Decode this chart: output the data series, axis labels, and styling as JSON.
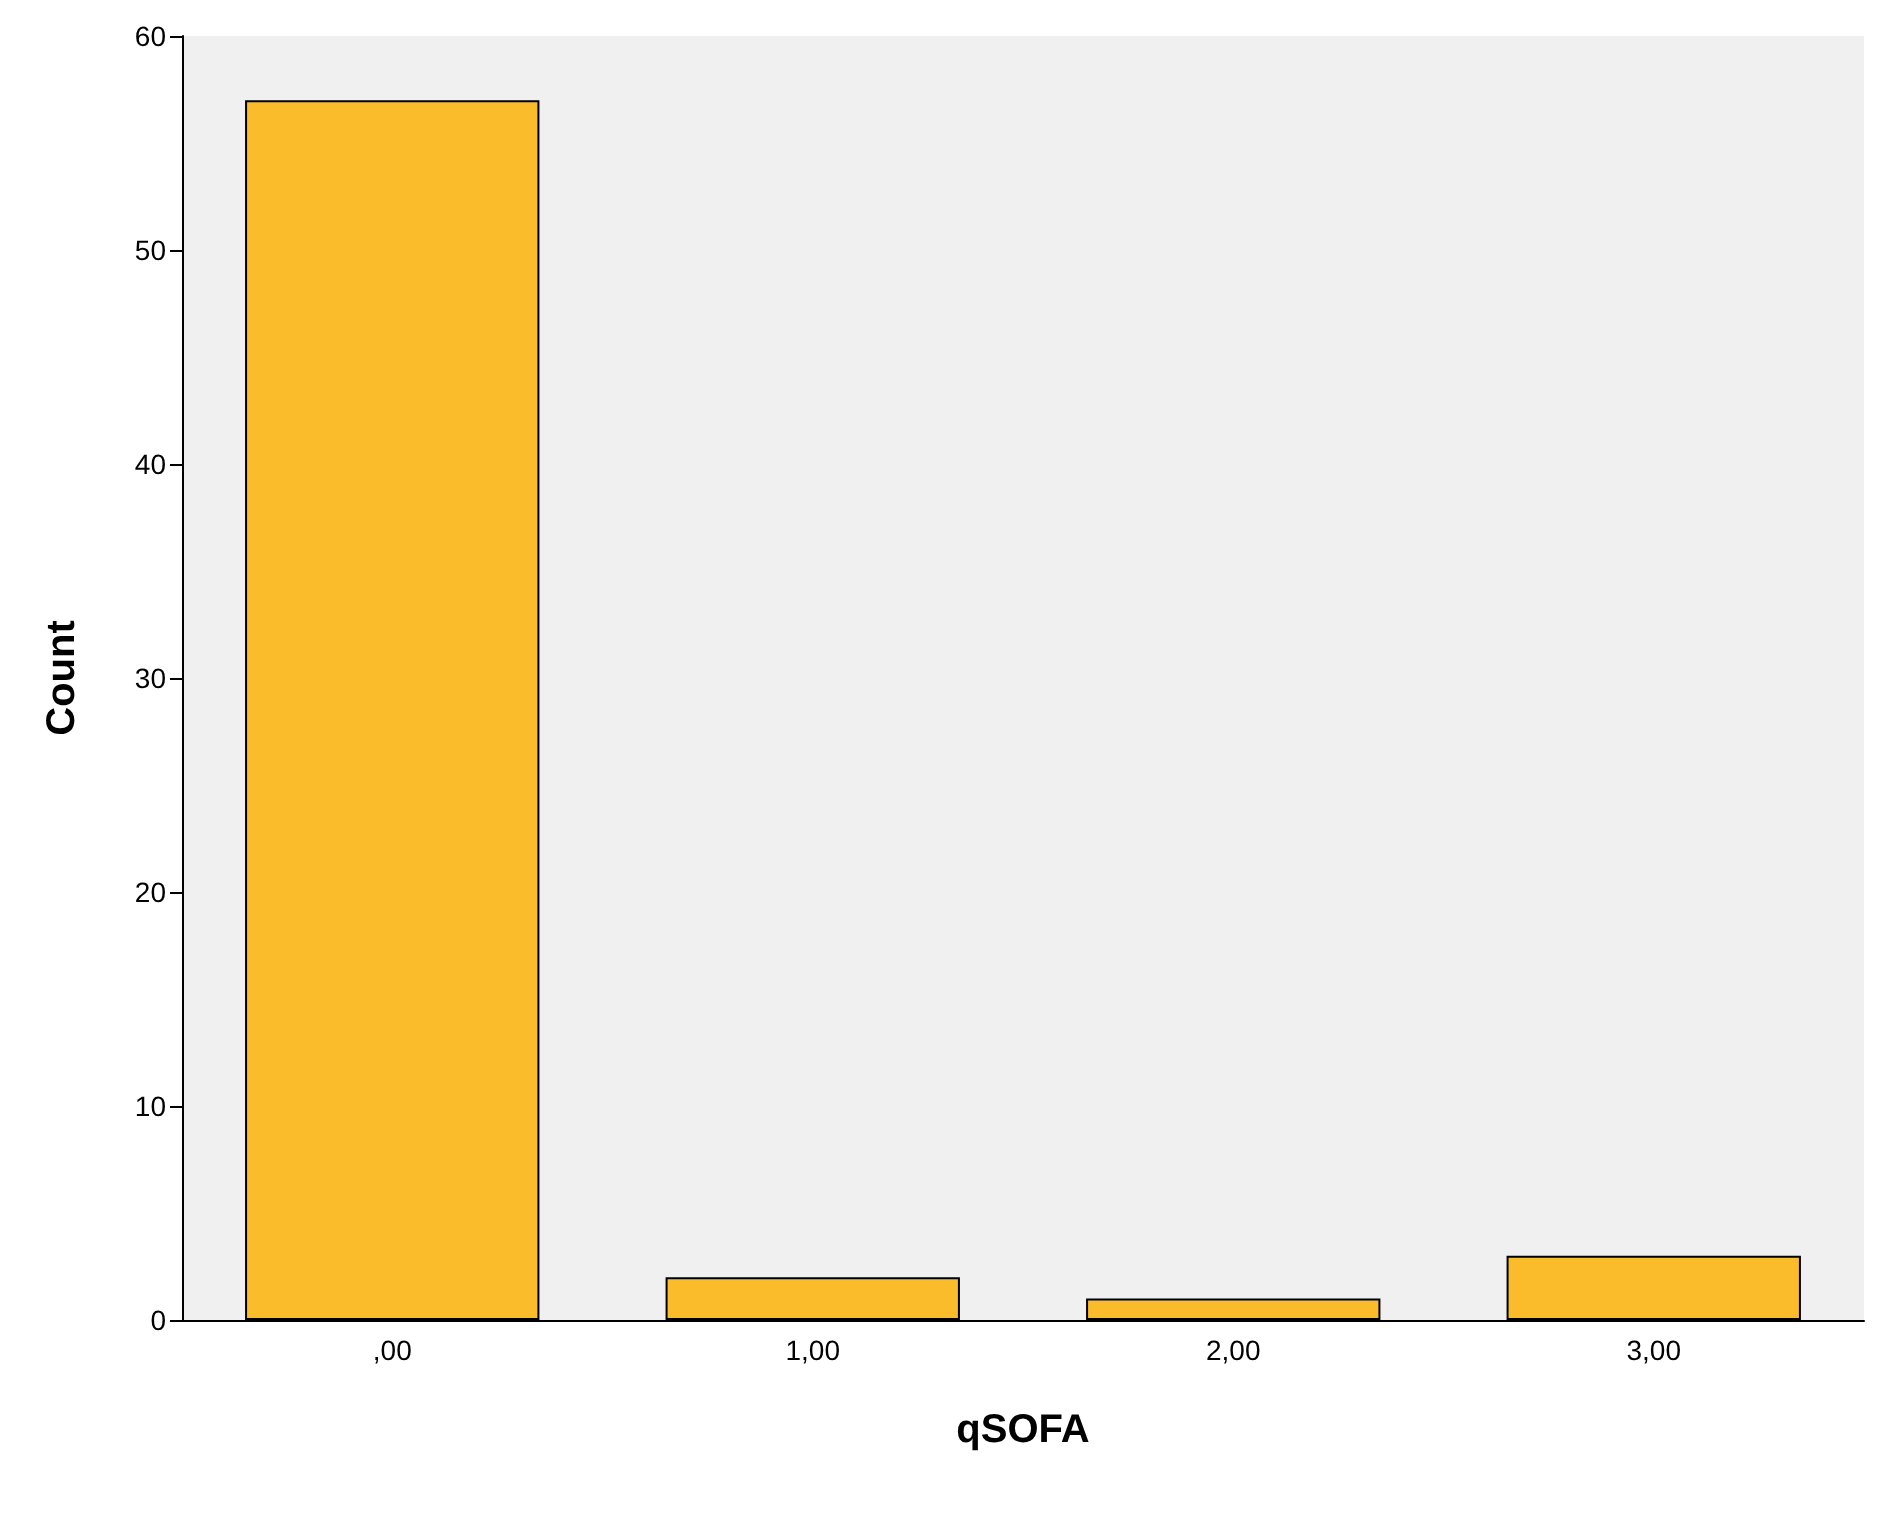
{
  "chart_data": {
    "type": "bar",
    "xlabel": "qSOFA",
    "ylabel": "Count",
    "categories": [
      ",00",
      "1,00",
      "2,00",
      "3,00"
    ],
    "values": [
      57,
      2,
      1,
      3
    ],
    "color": "#fbbc2c",
    "ylim": [
      0,
      60
    ],
    "yticks": [
      0,
      10,
      20,
      30,
      40,
      50,
      60
    ],
    "grid": false
  }
}
